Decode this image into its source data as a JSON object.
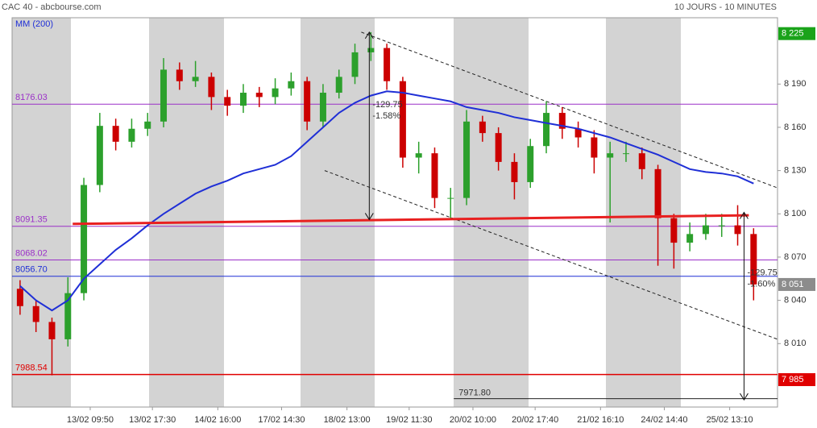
{
  "chart_data": {
    "type": "candlestick",
    "title": "CAC 40 - abcbourse.com",
    "subtitle": "10 JOURS - 10 MINUTES",
    "xlim": [
      -0.5,
      47.5
    ],
    "ylim": [
      7966,
      8236
    ],
    "yticks": [
      {
        "value": 8010,
        "label": "8 010"
      },
      {
        "value": 8040,
        "label": "8 040"
      },
      {
        "value": 8070,
        "label": "8 070"
      },
      {
        "value": 8100,
        "label": "8 100"
      },
      {
        "value": 8130,
        "label": "8 130"
      },
      {
        "value": 8160,
        "label": "8 160"
      },
      {
        "value": 8190,
        "label": "8 190"
      }
    ],
    "xticks": [
      {
        "value": 4.4,
        "label": "13/02 09:50"
      },
      {
        "value": 8.3,
        "label": "13/02 17:30"
      },
      {
        "value": 12.4,
        "label": "14/02 16:00"
      },
      {
        "value": 16.4,
        "label": "17/02 14:30"
      },
      {
        "value": 20.5,
        "label": "18/02 13:00"
      },
      {
        "value": 24.4,
        "label": "19/02 11:30"
      },
      {
        "value": 28.4,
        "label": "20/02 10:00"
      },
      {
        "value": 32.3,
        "label": "20/02 17:40"
      },
      {
        "value": 36.4,
        "label": "21/02 16:10"
      },
      {
        "value": 40.4,
        "label": "24/02 14:40"
      },
      {
        "value": 44.5,
        "label": "25/02 13:10"
      }
    ],
    "up_color": "#2ca02c",
    "down_color": "#cc0000",
    "open": [
      8048,
      8036,
      8025,
      8013,
      8045,
      8120,
      8161,
      8150,
      8159,
      8164,
      8200,
      8192,
      8195,
      8181,
      8175,
      8184,
      8181,
      8187,
      8192,
      8164,
      8184,
      8195,
      8212,
      8215,
      8192,
      8139,
      8142,
      8111,
      8111,
      8164,
      8156,
      8136,
      8122,
      8147,
      8170,
      8159,
      8153,
      8139,
      8142,
      8142,
      8131,
      8097,
      8080,
      8086,
      8092,
      8092,
      8086
    ],
    "high": [
      8054,
      8040,
      8028,
      8056,
      8125,
      8170,
      8166,
      8166,
      8170,
      8208,
      8205,
      8206,
      8198,
      8186,
      8190,
      8188,
      8194,
      8198,
      8195,
      8190,
      8200,
      8218,
      8226,
      8218,
      8195,
      8150,
      8146,
      8118,
      8172,
      8168,
      8160,
      8142,
      8152,
      8178,
      8174,
      8164,
      8158,
      8150,
      8150,
      8146,
      8134,
      8100,
      8094,
      8100,
      8100,
      8106,
      8090
    ],
    "low": [
      8030,
      8018,
      7988,
      8008,
      8040,
      8115,
      8144,
      8146,
      8154,
      8160,
      8186,
      8188,
      8172,
      8168,
      8170,
      8174,
      8176,
      8182,
      8158,
      8160,
      8180,
      8190,
      8206,
      8186,
      8132,
      8128,
      8104,
      8096,
      8106,
      8150,
      8130,
      8110,
      8118,
      8142,
      8152,
      8146,
      8128,
      8094,
      8136,
      8124,
      8064,
      8062,
      8074,
      8082,
      8084,
      8078,
      8040
    ],
    "close": [
      8036,
      8025,
      8013,
      8045,
      8120,
      8161,
      8150,
      8159,
      8164,
      8200,
      8192,
      8195,
      8181,
      8175,
      8184,
      8181,
      8187,
      8192,
      8164,
      8184,
      8195,
      8212,
      8215,
      8192,
      8139,
      8142,
      8111,
      8111,
      8164,
      8156,
      8136,
      8122,
      8147,
      8170,
      8159,
      8153,
      8139,
      8142,
      8142,
      8131,
      8097,
      8080,
      8086,
      8092,
      8092,
      8086,
      8051
    ],
    "moving_average": {
      "name": "MM (200)",
      "color": "#1f2fd6",
      "values": [
        8050,
        8040,
        8033,
        8040,
        8055,
        8065,
        8075,
        8083,
        8092,
        8100,
        8107,
        8114,
        8119,
        8123,
        8128,
        8131,
        8134,
        8140,
        8150,
        8160,
        8170,
        8177,
        8182,
        8185,
        8184,
        8182,
        8180,
        8178,
        8174,
        8172,
        8170,
        8167,
        8165,
        8163,
        8161,
        8159,
        8156,
        8153,
        8149,
        8145,
        8141,
        8136,
        8131,
        8129,
        8128,
        8126,
        8121
      ]
    },
    "levels": [
      {
        "label": "8176.03",
        "value": 8176.03,
        "color": "#9b30c8"
      },
      {
        "label": "8091.35",
        "value": 8091.35,
        "color": "#9b30c8"
      },
      {
        "label": "8068.02",
        "value": 8068.02,
        "color": "#9b30c8"
      },
      {
        "label": "8056.70",
        "value": 8056.7,
        "color": "#1f2fd6"
      },
      {
        "label": "7988.54",
        "value": 7988.54,
        "color": "#e00000"
      }
    ],
    "price_markers": [
      {
        "label": "8 225",
        "value": 8225,
        "color": "#1aa31a"
      },
      {
        "label": "8 051",
        "value": 8051,
        "color": "#8c8c8c"
      },
      {
        "label": "7 985",
        "value": 7985,
        "color": "#e00000"
      }
    ],
    "trendline": {
      "color": "#e82020",
      "x": [
        3.3,
        45.7
      ],
      "values": [
        8093,
        8099
      ]
    },
    "channel": [
      {
        "x": [
          21.4,
          47.5
        ],
        "values": [
          8226,
          8118
        ]
      },
      {
        "x": [
          19.1,
          47.5
        ],
        "values": [
          8130,
          8013
        ]
      }
    ],
    "moves": [
      {
        "x": 21.9,
        "values": [
          8226,
          8096
        ],
        "change": "-129.75",
        "percent": "-1.58%"
      },
      {
        "x": 45.4,
        "values": [
          8101,
          7971
        ],
        " change": null,
        "percent": "-1.60%",
        "label": "-129.75"
      }
    ],
    "target": {
      "label": "7971.80",
      "value": 7971.8,
      "x": [
        27.2,
        47.5
      ]
    }
  }
}
